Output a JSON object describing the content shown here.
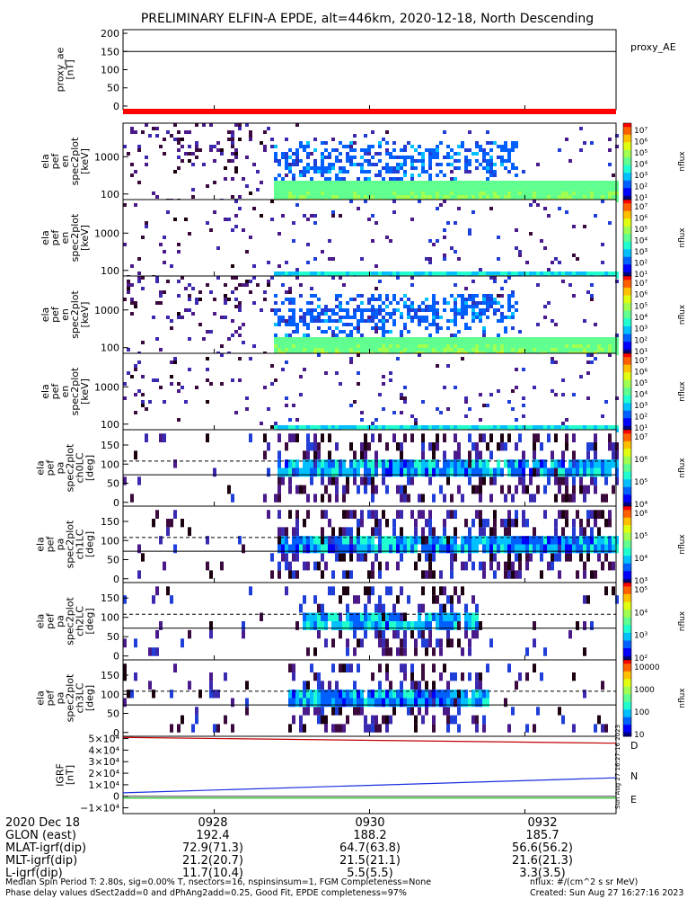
{
  "title": "PRELIMINARY ELFIN-A EPDE, alt=446km, 2020-12-18, North Descending",
  "colors": {
    "panel_ae": "#000000",
    "bar": "#ff0000",
    "igrf_d": "#c00000",
    "igrf_n": "#1a2fe0",
    "igrf_e": "#00b000"
  },
  "chart_data": [
    {
      "type": "line",
      "name": "proxy_ae",
      "ylabel_lines": [
        "proxy_ae",
        "[nT]"
      ],
      "yticks": [
        "200",
        "150",
        "100",
        "50",
        "0"
      ],
      "ylim": [
        -10,
        210
      ],
      "value": 150,
      "legend": "proxy_AE"
    },
    {
      "type": "heatmap",
      "ylabel_lines": [
        "ela",
        "pef",
        "en",
        "spec2plot",
        "[keV]"
      ],
      "yticks": [
        "1000",
        "100"
      ],
      "ylog": true,
      "cbar": [
        "10⁷",
        "10⁶",
        "10⁵",
        "10⁴",
        "10³",
        "10²",
        "10¹"
      ],
      "cblabel": "nflux"
    },
    {
      "type": "heatmap",
      "ylabel_lines": [
        "ela",
        "pef",
        "en",
        "spec2plot",
        "[keV]"
      ],
      "yticks": [
        "1000",
        "100"
      ],
      "ylog": true,
      "cbar": [
        "10⁷",
        "10⁶",
        "10⁵",
        "10⁴",
        "10³",
        "10²",
        "10¹"
      ],
      "cblabel": "nflux"
    },
    {
      "type": "heatmap",
      "ylabel_lines": [
        "ela",
        "pef",
        "en",
        "spec2plot",
        "[keV]"
      ],
      "yticks": [
        "1000",
        "100"
      ],
      "ylog": true,
      "cbar": [
        "10⁷",
        "10⁶",
        "10⁵",
        "10⁴",
        "10³",
        "10²",
        "10¹"
      ],
      "cblabel": "nflux"
    },
    {
      "type": "heatmap",
      "ylabel_lines": [
        "ela",
        "pef",
        "en",
        "spec2plot",
        "[keV]"
      ],
      "yticks": [
        "1000",
        "100"
      ],
      "ylog": true,
      "cbar": [
        "10⁷",
        "10⁶",
        "10⁵",
        "10⁴",
        "10³",
        "10²",
        "10¹"
      ],
      "cblabel": "nflux"
    },
    {
      "type": "heatmap",
      "ylabel_lines": [
        "ela",
        "pef",
        "pa",
        "spec2plot",
        "ch0LC",
        "[deg]"
      ],
      "yticks": [
        "150",
        "100",
        "50",
        "0"
      ],
      "ylim": [
        -10,
        190
      ],
      "cbar": [
        "10⁷",
        "10⁶",
        "10⁵",
        "10⁴"
      ],
      "cblabel": "nflux"
    },
    {
      "type": "heatmap",
      "ylabel_lines": [
        "ela",
        "pef",
        "pa",
        "spec2plot",
        "ch1LC",
        "[deg]"
      ],
      "yticks": [
        "150",
        "100",
        "50",
        "0"
      ],
      "ylim": [
        -10,
        190
      ],
      "cbar": [
        "10⁶",
        "10⁵",
        "10⁴",
        "10³"
      ],
      "cblabel": "nflux"
    },
    {
      "type": "heatmap",
      "ylabel_lines": [
        "ela",
        "pef",
        "pa",
        "spec2plot",
        "ch2LC",
        "[deg]"
      ],
      "yticks": [
        "150",
        "100",
        "50",
        "0"
      ],
      "ylim": [
        -10,
        190
      ],
      "cbar": [
        "10⁵",
        "10⁴",
        "10³",
        "10²"
      ],
      "cblabel": "nflux"
    },
    {
      "type": "heatmap",
      "ylabel_lines": [
        "ela",
        "pef",
        "pa",
        "spec2plot",
        "ch3LC",
        "[deg]"
      ],
      "yticks": [
        "150",
        "100",
        "50",
        "0"
      ],
      "ylim": [
        -10,
        190
      ],
      "cbar": [
        "10000",
        "1000",
        "100",
        "10"
      ],
      "cblabel": "nflux"
    },
    {
      "type": "line",
      "ylabel_lines": [
        "IGRF",
        "[nT]"
      ],
      "yticks": [
        "5×10⁴",
        "4×10⁴",
        "3×10⁴",
        "2×10⁴",
        "1×10⁴",
        "0",
        "−1×10⁴"
      ],
      "ylim": [
        -15000,
        52000
      ],
      "series": [
        {
          "name": "D",
          "values": [
            51000,
            46000
          ]
        },
        {
          "name": "N",
          "values": [
            3000,
            16000
          ]
        },
        {
          "name": "E",
          "values": [
            -1500,
            -1500
          ]
        }
      ]
    }
  ],
  "x_axis": {
    "ticks": [
      "0928",
      "0930",
      "0932"
    ],
    "rows": [
      {
        "label": "2020 Dec 18",
        "values": [
          "0928",
          "0930",
          "0932"
        ]
      },
      {
        "label": "GLON (east)",
        "values": [
          "192.4",
          "188.2",
          "185.7"
        ]
      },
      {
        "label": "MLAT-igrf(dip)",
        "values": [
          "72.9(71.3)",
          "64.7(63.8)",
          "56.6(56.2)"
        ]
      },
      {
        "label": "MLT-igrf(dip)",
        "values": [
          "21.2(20.7)",
          "21.5(21.1)",
          "21.6(21.3)"
        ]
      },
      {
        "label": "L-igrf(dip)",
        "values": [
          "11.7(10.4)",
          "5.5(5.5)",
          "3.3(3.5)"
        ]
      }
    ]
  },
  "footer": {
    "line1": "Median Spin Period T: 2.80s, sig=0.00% T, nsectors=16, nspinsinsum=1, FGM Completeness=None",
    "line2": "Phase delay values dSect2add=0 and dPhAng2add=0.25, Good Fit, EPDE completeness=97%",
    "units": "nflux: #/(cm^2 s sr MeV)",
    "created": "Created: Sun Aug 27 16:27:16 2023",
    "stamp": "Sun Aug 27 16:27:16 2023"
  }
}
